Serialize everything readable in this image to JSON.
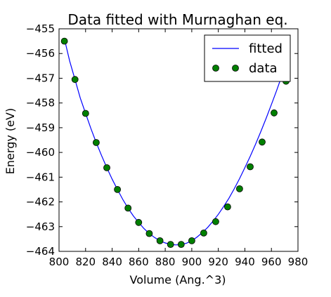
{
  "chart_data": {
    "type": "scatter",
    "title": "Data fitted with Murnaghan eq.",
    "xlabel": "Volume (Ang.^3)",
    "ylabel": "Energy (eV)",
    "xlim": [
      800,
      980
    ],
    "ylim": [
      -464,
      -455
    ],
    "xticks": [
      800,
      820,
      840,
      860,
      880,
      900,
      920,
      940,
      960,
      980
    ],
    "yticks": [
      -455,
      -456,
      -457,
      -458,
      -459,
      -460,
      -461,
      -462,
      -463,
      -464
    ],
    "xtick_labels": [
      "800",
      "820",
      "840",
      "860",
      "880",
      "900",
      "920",
      "940",
      "960",
      "980"
    ],
    "ytick_labels": [
      "−455",
      "−456",
      "−457",
      "−458",
      "−459",
      "−460",
      "−461",
      "−462",
      "−463",
      "−464"
    ],
    "grid": false,
    "legend_position": "top-right",
    "series": [
      {
        "name": "fitted",
        "kind": "line",
        "color": "#0000ff",
        "x": [
          804,
          808,
          812,
          816,
          820,
          824,
          828,
          832,
          836,
          840,
          844,
          848,
          852,
          856,
          860,
          864,
          868,
          872,
          876,
          880,
          884,
          888,
          892,
          896,
          900,
          904,
          908,
          912,
          916,
          920,
          924,
          928,
          932,
          936,
          940,
          944,
          948,
          952,
          956,
          960,
          964,
          968,
          971
        ],
        "y": [
          -455.4,
          -456.3,
          -457.05,
          -457.8,
          -458.42,
          -459.03,
          -459.6,
          -460.12,
          -460.62,
          -461.08,
          -461.5,
          -461.9,
          -462.25,
          -462.57,
          -462.83,
          -463.08,
          -463.28,
          -463.44,
          -463.57,
          -463.66,
          -463.72,
          -463.74,
          -463.72,
          -463.67,
          -463.57,
          -463.42,
          -463.24,
          -463.03,
          -462.78,
          -462.5,
          -462.19,
          -461.85,
          -461.47,
          -461.06,
          -460.62,
          -460.16,
          -459.67,
          -459.16,
          -458.62,
          -458.06,
          -457.48,
          -456.88,
          -456.4
        ]
      },
      {
        "name": "data",
        "kind": "markers",
        "color": "#008000",
        "x": [
          804,
          812,
          820,
          828,
          836,
          844,
          852,
          860,
          868,
          876,
          884,
          892,
          900,
          909,
          918,
          927,
          936,
          944,
          953,
          962,
          971
        ],
        "y": [
          -455.5,
          -457.05,
          -458.42,
          -459.6,
          -460.62,
          -461.5,
          -462.25,
          -462.83,
          -463.28,
          -463.57,
          -463.72,
          -463.72,
          -463.57,
          -463.26,
          -462.8,
          -462.2,
          -461.47,
          -460.58,
          -459.58,
          -458.4,
          -457.12
        ]
      }
    ]
  }
}
